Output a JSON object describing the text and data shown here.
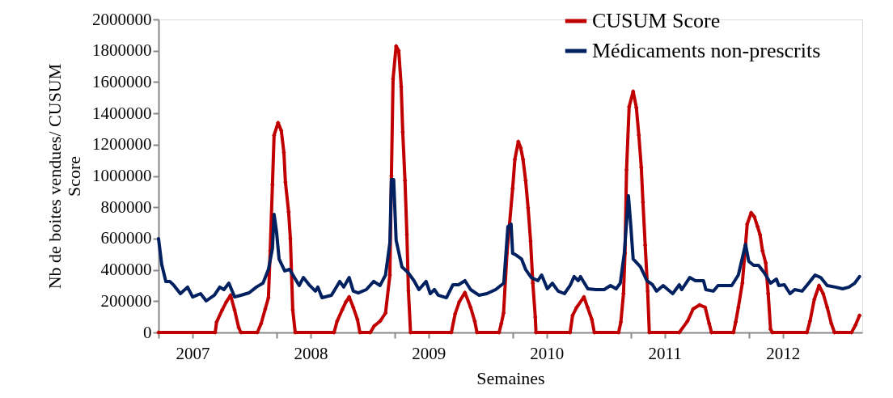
{
  "chart_data": {
    "type": "line",
    "xlabel": "Semaines",
    "ylabel": "Nb de boites vendues/ CUSUM Score",
    "xlim": [
      2006.712,
      2012.674
    ],
    "xticks": [
      {
        "value": 2006.712,
        "label": null
      },
      2007,
      {
        "value": 2007.712,
        "label": null
      },
      2008,
      {
        "value": 2008.712,
        "label": null
      },
      2009,
      {
        "value": 2009.712,
        "label": null
      },
      2010,
      {
        "value": 2010.712,
        "label": null
      },
      2011,
      {
        "value": 2011.712,
        "label": null
      },
      2012
    ],
    "ylim": [
      0,
      2000000
    ],
    "yticks": [
      0,
      200000,
      400000,
      600000,
      800000,
      1000000,
      1200000,
      1400000,
      1600000,
      1800000,
      2000000
    ],
    "grid": false,
    "legend": "top right",
    "series": [
      {
        "name": "CUSUM Score",
        "color": "#c00000",
        "marker": "diamond",
        "x": [
          2006.712,
          2007.192,
          2007.204,
          2007.252,
          2007.287,
          2007.322,
          2007.356,
          2007.391,
          2007.41,
          2007.549,
          2007.581,
          2007.616,
          2007.643,
          2007.658,
          2007.677,
          2007.691,
          2007.725,
          2007.752,
          2007.774,
          2007.787,
          2007.814,
          2007.829,
          2007.849,
          2007.87,
          2008.199,
          2008.225,
          2008.268,
          2008.3,
          2008.327,
          2008.362,
          2008.397,
          2008.418,
          2008.506,
          2008.539,
          2008.589,
          2008.635,
          2008.672,
          2008.685,
          2008.699,
          2008.725,
          2008.747,
          2008.768,
          2008.781,
          2008.8,
          2008.816,
          2008.829,
          2008.847,
          2009.193,
          2009.225,
          2009.26,
          2009.308,
          2009.356,
          2009.391,
          2009.41,
          2009.597,
          2009.616,
          2009.635,
          2009.664,
          2009.712,
          2009.731,
          2009.76,
          2009.781,
          2009.8,
          2009.822,
          2009.843,
          2009.864,
          2009.883,
          2009.904,
          2009.91,
          2010.199,
          2010.22,
          2010.254,
          2010.316,
          2010.347,
          2010.383,
          2010.404,
          2010.61,
          2010.629,
          2010.651,
          2010.664,
          2010.677,
          2010.699,
          2010.733,
          2010.76,
          2010.781,
          2010.802,
          2010.816,
          2010.835,
          2010.856,
          2010.87,
          2011.124,
          2011.193,
          2011.241,
          2011.295,
          2011.343,
          2011.377,
          2011.397,
          2011.583,
          2011.602,
          2011.624,
          2011.658,
          2011.685,
          2011.699,
          2011.733,
          2011.76,
          2011.787,
          2011.808,
          2011.829,
          2011.856,
          2011.877,
          2011.897,
          2011.912,
          2012.206,
          2012.231,
          2012.268,
          2012.308,
          2012.343,
          2012.377,
          2012.412,
          2012.439,
          2012.583,
          2012.616,
          2012.651
        ],
        "values": [
          0,
          0,
          67000,
          145000,
          196000,
          238000,
          145000,
          31000,
          0,
          0,
          57000,
          150000,
          222000,
          522000,
          945000,
          1260000,
          1340000,
          1290000,
          1150000,
          960000,
          770000,
          600000,
          145000,
          0,
          0,
          72000,
          145000,
          196000,
          227000,
          160000,
          83000,
          0,
          0,
          41000,
          72000,
          124000,
          367000,
          1000000,
          1620000,
          1830000,
          1800000,
          1570000,
          1280000,
          970000,
          625000,
          265000,
          0,
          0,
          119000,
          196000,
          255000,
          160000,
          72000,
          0,
          0,
          57000,
          124000,
          506000,
          920000,
          1106000,
          1220000,
          1178000,
          1106000,
          970000,
          796000,
          584000,
          315000,
          98000,
          0,
          0,
          109000,
          160000,
          227000,
          160000,
          83000,
          0,
          0,
          67000,
          248000,
          506000,
          1039000,
          1442000,
          1540000,
          1437000,
          1261000,
          1054000,
          832000,
          558000,
          264000,
          0,
          0,
          72000,
          150000,
          176000,
          160000,
          57000,
          0,
          0,
          67000,
          160000,
          315000,
          558000,
          692000,
          765000,
          739000,
          677000,
          625000,
          522000,
          444000,
          248000,
          21000,
          0,
          0,
          72000,
          212000,
          300000,
          248000,
          160000,
          57000,
          0,
          0,
          46000,
          109000
        ]
      },
      {
        "name": "Médicaments non-prescrits",
        "color": "#002060",
        "marker": "none",
        "x": [
          2006.712,
          2006.739,
          2006.774,
          2006.808,
          2006.843,
          2006.897,
          2006.958,
          2007.001,
          2007.068,
          2007.116,
          2007.185,
          2007.231,
          2007.266,
          2007.308,
          2007.356,
          2007.41,
          2007.479,
          2007.541,
          2007.597,
          2007.643,
          2007.677,
          2007.691,
          2007.712,
          2007.733,
          2007.781,
          2007.822,
          2007.904,
          2007.939,
          2007.993,
          2008.041,
          2008.062,
          2008.097,
          2008.177,
          2008.247,
          2008.281,
          2008.327,
          2008.362,
          2008.404,
          2008.472,
          2008.535,
          2008.589,
          2008.635,
          2008.672,
          2008.685,
          2008.704,
          2008.725,
          2008.774,
          2008.827,
          2008.876,
          2008.918,
          2008.979,
          2009.014,
          2009.049,
          2009.081,
          2009.151,
          2009.206,
          2009.254,
          2009.308,
          2009.356,
          2009.426,
          2009.493,
          2009.568,
          2009.637,
          2009.672,
          2009.699,
          2009.712,
          2009.739,
          2009.787,
          2009.822,
          2009.87,
          2009.926,
          2009.958,
          2010.006,
          2010.049,
          2010.097,
          2010.151,
          2010.199,
          2010.233,
          2010.268,
          2010.287,
          2010.349,
          2010.418,
          2010.487,
          2010.541,
          2010.589,
          2010.624,
          2010.658,
          2010.693,
          2010.712,
          2010.733,
          2010.795,
          2010.849,
          2010.897,
          2010.931,
          2010.987,
          2011.068,
          2011.124,
          2011.145,
          2011.212,
          2011.26,
          2011.329,
          2011.349,
          2011.412,
          2011.452,
          2011.514,
          2011.568,
          2011.624,
          2011.685,
          2011.712,
          2011.754,
          2011.795,
          2011.843,
          2011.897,
          2011.947,
          2011.966,
          2012.014,
          2012.062,
          2012.102,
          2012.164,
          2012.22,
          2012.274,
          2012.322,
          2012.377,
          2012.445,
          2012.508,
          2012.562,
          2012.61,
          2012.651
        ],
        "values": [
          600000,
          434000,
          326000,
          326000,
          300000,
          248000,
          290000,
          227000,
          248000,
          202000,
          238000,
          290000,
          274000,
          315000,
          227000,
          238000,
          253000,
          290000,
          315000,
          403000,
          537000,
          755000,
          641000,
          470000,
          393000,
          403000,
          300000,
          351000,
          300000,
          264000,
          290000,
          222000,
          238000,
          326000,
          290000,
          351000,
          264000,
          253000,
          274000,
          326000,
          300000,
          367000,
          574000,
          977000,
          977000,
          589000,
          419000,
          382000,
          331000,
          274000,
          326000,
          248000,
          274000,
          238000,
          222000,
          305000,
          305000,
          331000,
          274000,
          238000,
          248000,
          274000,
          315000,
          677000,
          692000,
          506000,
          496000,
          470000,
          403000,
          351000,
          331000,
          367000,
          279000,
          315000,
          264000,
          248000,
          300000,
          357000,
          331000,
          357000,
          279000,
          274000,
          274000,
          300000,
          279000,
          315000,
          506000,
          873000,
          692000,
          470000,
          419000,
          331000,
          305000,
          264000,
          300000,
          248000,
          305000,
          274000,
          351000,
          331000,
          331000,
          274000,
          264000,
          300000,
          300000,
          300000,
          367000,
          563000,
          455000,
          429000,
          429000,
          382000,
          315000,
          341000,
          300000,
          305000,
          248000,
          274000,
          264000,
          315000,
          367000,
          351000,
          300000,
          290000,
          279000,
          290000,
          315000,
          357000
        ]
      }
    ]
  }
}
